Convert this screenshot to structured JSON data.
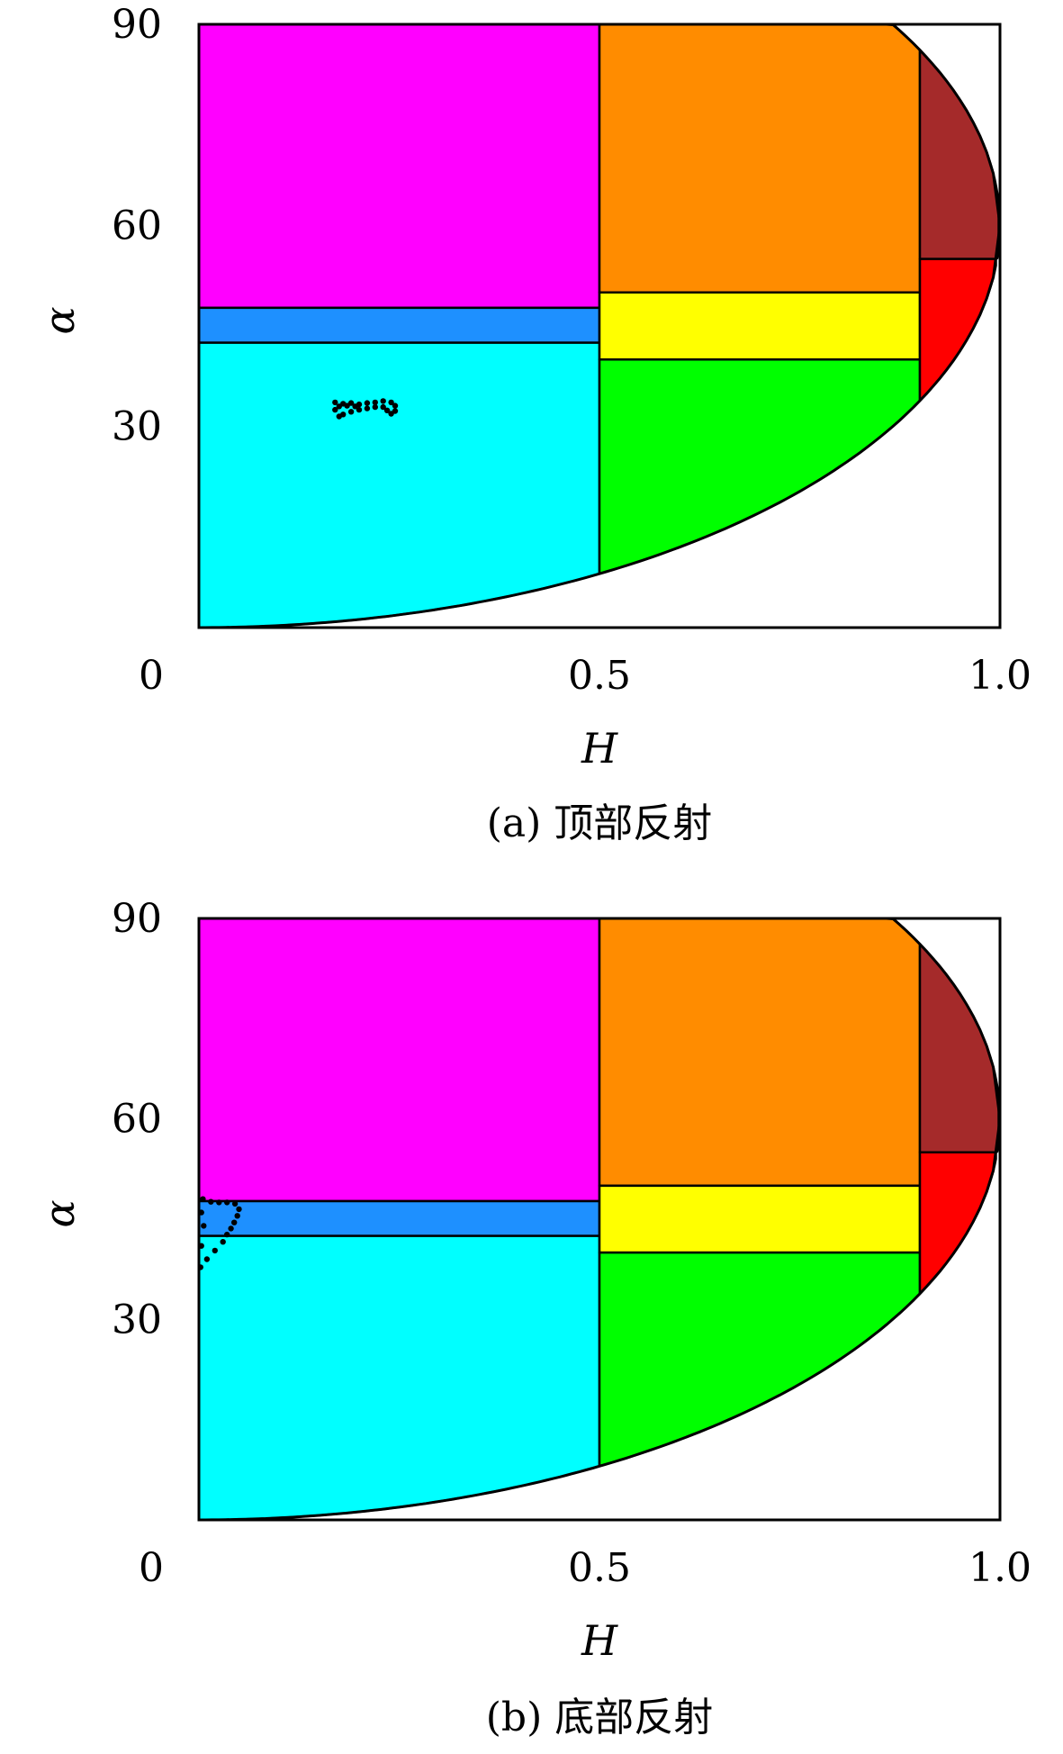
{
  "chart_data": [
    {
      "type": "area",
      "panel_id": "a",
      "caption": "(a) 顶部反射",
      "xlabel": "H",
      "ylabel": "α",
      "xlim": [
        0,
        1
      ],
      "ylim": [
        0,
        90
      ],
      "xticks": [
        0,
        0.5,
        1.0
      ],
      "xtick_labels": [
        "0",
        "0.5",
        "1.0"
      ],
      "yticks": [
        30,
        60,
        90
      ],
      "ytick_labels": [
        "30",
        "60",
        "90"
      ],
      "grid": false,
      "zones": [
        {
          "id": "magenta",
          "color": "#ff00ff",
          "h": [
            0,
            0.5
          ],
          "alpha": [
            47.7,
            90
          ]
        },
        {
          "id": "blue",
          "color": "#1e90ff",
          "h": [
            0,
            0.5
          ],
          "alpha": [
            42.5,
            47.7
          ]
        },
        {
          "id": "cyan",
          "color": "#00ffff",
          "h": [
            0,
            0.5
          ],
          "alpha": [
            0,
            42.5
          ]
        },
        {
          "id": "orange",
          "color": "#ff8c00",
          "h": [
            0.5,
            0.9
          ],
          "alpha": [
            50,
            90
          ]
        },
        {
          "id": "yellow",
          "color": "#ffff00",
          "h": [
            0.5,
            0.9
          ],
          "alpha": [
            40,
            50
          ]
        },
        {
          "id": "green",
          "color": "#00ff00",
          "h": [
            0.5,
            0.9
          ],
          "alpha": [
            0,
            40
          ]
        },
        {
          "id": "brown",
          "color": "#a52a2a",
          "h": [
            0.9,
            1.0
          ],
          "alpha": [
            55,
            90
          ]
        },
        {
          "id": "red",
          "color": "#ff0000",
          "h": [
            0.9,
            1.0
          ],
          "alpha": [
            0,
            55
          ]
        }
      ],
      "points": [
        [
          0.17,
          33.6
        ],
        [
          0.18,
          33.4
        ],
        [
          0.19,
          33.5
        ],
        [
          0.2,
          33.3
        ],
        [
          0.21,
          33.5
        ],
        [
          0.22,
          33.6
        ],
        [
          0.23,
          33.8
        ],
        [
          0.24,
          33.6
        ],
        [
          0.245,
          33.1
        ],
        [
          0.245,
          32.3
        ],
        [
          0.24,
          31.9
        ],
        [
          0.235,
          32.4
        ],
        [
          0.23,
          32.9
        ],
        [
          0.22,
          32.9
        ],
        [
          0.21,
          32.7
        ],
        [
          0.2,
          32.5
        ],
        [
          0.19,
          32.2
        ],
        [
          0.18,
          31.8
        ],
        [
          0.175,
          31.5
        ],
        [
          0.17,
          32.5
        ],
        [
          0.175,
          33.0
        ],
        [
          0.185,
          33.1
        ],
        [
          0.195,
          33.0
        ]
      ]
    },
    {
      "type": "area",
      "panel_id": "b",
      "caption": "(b) 底部反射",
      "xlabel": "H",
      "ylabel": "α",
      "xlim": [
        0,
        1
      ],
      "ylim": [
        0,
        90
      ],
      "xticks": [
        0,
        0.5,
        1.0
      ],
      "xtick_labels": [
        "0",
        "0.5",
        "1.0"
      ],
      "yticks": [
        30,
        60,
        90
      ],
      "ytick_labels": [
        "30",
        "60",
        "90"
      ],
      "grid": false,
      "zones": [
        {
          "id": "magenta",
          "color": "#ff00ff",
          "h": [
            0,
            0.5
          ],
          "alpha": [
            47.7,
            90
          ]
        },
        {
          "id": "blue",
          "color": "#1e90ff",
          "h": [
            0,
            0.5
          ],
          "alpha": [
            42.5,
            47.7
          ]
        },
        {
          "id": "cyan",
          "color": "#00ffff",
          "h": [
            0,
            0.5
          ],
          "alpha": [
            0,
            42.5
          ]
        },
        {
          "id": "orange",
          "color": "#ff8c00",
          "h": [
            0.5,
            0.9
          ],
          "alpha": [
            50,
            90
          ]
        },
        {
          "id": "yellow",
          "color": "#ffff00",
          "h": [
            0.5,
            0.9
          ],
          "alpha": [
            40,
            50
          ]
        },
        {
          "id": "green",
          "color": "#00ff00",
          "h": [
            0.5,
            0.9
          ],
          "alpha": [
            0,
            40
          ]
        },
        {
          "id": "brown",
          "color": "#a52a2a",
          "h": [
            0.9,
            1.0
          ],
          "alpha": [
            55,
            90
          ]
        },
        {
          "id": "red",
          "color": "#ff0000",
          "h": [
            0.9,
            1.0
          ],
          "alpha": [
            0,
            55
          ]
        }
      ],
      "points": [
        [
          0.005,
          48.0
        ],
        [
          0.015,
          47.6
        ],
        [
          0.025,
          47.5
        ],
        [
          0.035,
          47.5
        ],
        [
          0.045,
          47.3
        ],
        [
          0.05,
          46.5
        ],
        [
          0.048,
          45.5
        ],
        [
          0.044,
          44.5
        ],
        [
          0.04,
          43.6
        ],
        [
          0.035,
          42.7
        ],
        [
          0.03,
          41.6
        ],
        [
          0.02,
          40.3
        ],
        [
          0.01,
          39.0
        ],
        [
          0.002,
          37.8
        ],
        [
          0.003,
          41.0
        ],
        [
          0.006,
          44.0
        ],
        [
          0.003,
          46.0
        ]
      ]
    }
  ]
}
